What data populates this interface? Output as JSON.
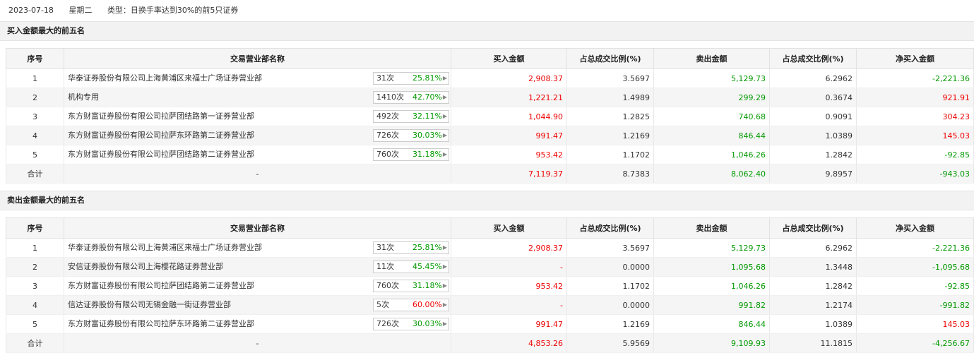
{
  "header": {
    "date": "2023-07-18",
    "weekday": "星期二",
    "type_label": "类型：日换手率达到30%的前5只证券"
  },
  "columns": [
    "序号",
    "交易营业部名称",
    "买入金额",
    "占总成交比例(%)",
    "卖出金额",
    "占总成交比例(%)",
    "净买入金额"
  ],
  "buy_section": {
    "title": "买入金额最大的前五名",
    "rows": [
      {
        "idx": "1",
        "name": "华泰证券股份有限公司上海黄浦区来福士广场证券营业部",
        "count": "31次",
        "pct": "25.81%",
        "pct_color": "green",
        "buy": "2,908.37",
        "buy_ratio": "3.5697",
        "sell": "5,129.73",
        "sell_ratio": "6.2962",
        "net": "-2,221.36",
        "net_color": "green"
      },
      {
        "idx": "2",
        "name": "机构专用",
        "count": "1410次",
        "pct": "42.70%",
        "pct_color": "green",
        "buy": "1,221.21",
        "buy_ratio": "1.4989",
        "sell": "299.29",
        "sell_ratio": "0.3674",
        "net": "921.91",
        "net_color": "red"
      },
      {
        "idx": "3",
        "name": "东方财富证券股份有限公司拉萨团结路第一证券营业部",
        "count": "492次",
        "pct": "32.11%",
        "pct_color": "green",
        "buy": "1,044.90",
        "buy_ratio": "1.2825",
        "sell": "740.68",
        "sell_ratio": "0.9091",
        "net": "304.23",
        "net_color": "red"
      },
      {
        "idx": "4",
        "name": "东方财富证券股份有限公司拉萨东环路第二证券营业部",
        "count": "726次",
        "pct": "30.03%",
        "pct_color": "green",
        "buy": "991.47",
        "buy_ratio": "1.2169",
        "sell": "846.44",
        "sell_ratio": "1.0389",
        "net": "145.03",
        "net_color": "red"
      },
      {
        "idx": "5",
        "name": "东方财富证券股份有限公司拉萨团结路第二证券营业部",
        "count": "760次",
        "pct": "31.18%",
        "pct_color": "green",
        "buy": "953.42",
        "buy_ratio": "1.1702",
        "sell": "1,046.26",
        "sell_ratio": "1.2842",
        "net": "-92.85",
        "net_color": "green"
      }
    ],
    "total": {
      "label": "合计",
      "name": "-",
      "buy": "7,119.37",
      "buy_ratio": "8.7383",
      "sell": "8,062.40",
      "sell_ratio": "9.8957",
      "net": "-943.03",
      "net_color": "green"
    }
  },
  "sell_section": {
    "title": "卖出金额最大的前五名",
    "rows": [
      {
        "idx": "1",
        "name": "华泰证券股份有限公司上海黄浦区来福士广场证券营业部",
        "count": "31次",
        "pct": "25.81%",
        "pct_color": "green",
        "buy": "2,908.37",
        "buy_ratio": "3.5697",
        "sell": "5,129.73",
        "sell_ratio": "6.2962",
        "net": "-2,221.36",
        "net_color": "green"
      },
      {
        "idx": "2",
        "name": "安信证券股份有限公司上海樱花路证券营业部",
        "count": "11次",
        "pct": "45.45%",
        "pct_color": "green",
        "buy": "-",
        "buy_ratio": "0.0000",
        "sell": "1,095.68",
        "sell_ratio": "1.3448",
        "net": "-1,095.68",
        "net_color": "green"
      },
      {
        "idx": "3",
        "name": "东方财富证券股份有限公司拉萨团结路第二证券营业部",
        "count": "760次",
        "pct": "31.18%",
        "pct_color": "green",
        "buy": "953.42",
        "buy_ratio": "1.1702",
        "sell": "1,046.26",
        "sell_ratio": "1.2842",
        "net": "-92.85",
        "net_color": "green"
      },
      {
        "idx": "4",
        "name": "信达证券股份有限公司无锡金融一街证券营业部",
        "count": "5次",
        "pct": "60.00%",
        "pct_color": "red",
        "buy": "-",
        "buy_ratio": "0.0000",
        "sell": "991.82",
        "sell_ratio": "1.2174",
        "net": "-991.82",
        "net_color": "green"
      },
      {
        "idx": "5",
        "name": "东方财富证券股份有限公司拉萨东环路第二证券营业部",
        "count": "726次",
        "pct": "30.03%",
        "pct_color": "green",
        "buy": "991.47",
        "buy_ratio": "1.2169",
        "sell": "846.44",
        "sell_ratio": "1.0389",
        "net": "145.03",
        "net_color": "red"
      }
    ],
    "total": {
      "label": "合计",
      "name": "-",
      "buy": "4,853.26",
      "buy_ratio": "5.9569",
      "sell": "9,109.93",
      "sell_ratio": "11.1815",
      "net": "-4,256.67",
      "net_color": "green"
    }
  }
}
